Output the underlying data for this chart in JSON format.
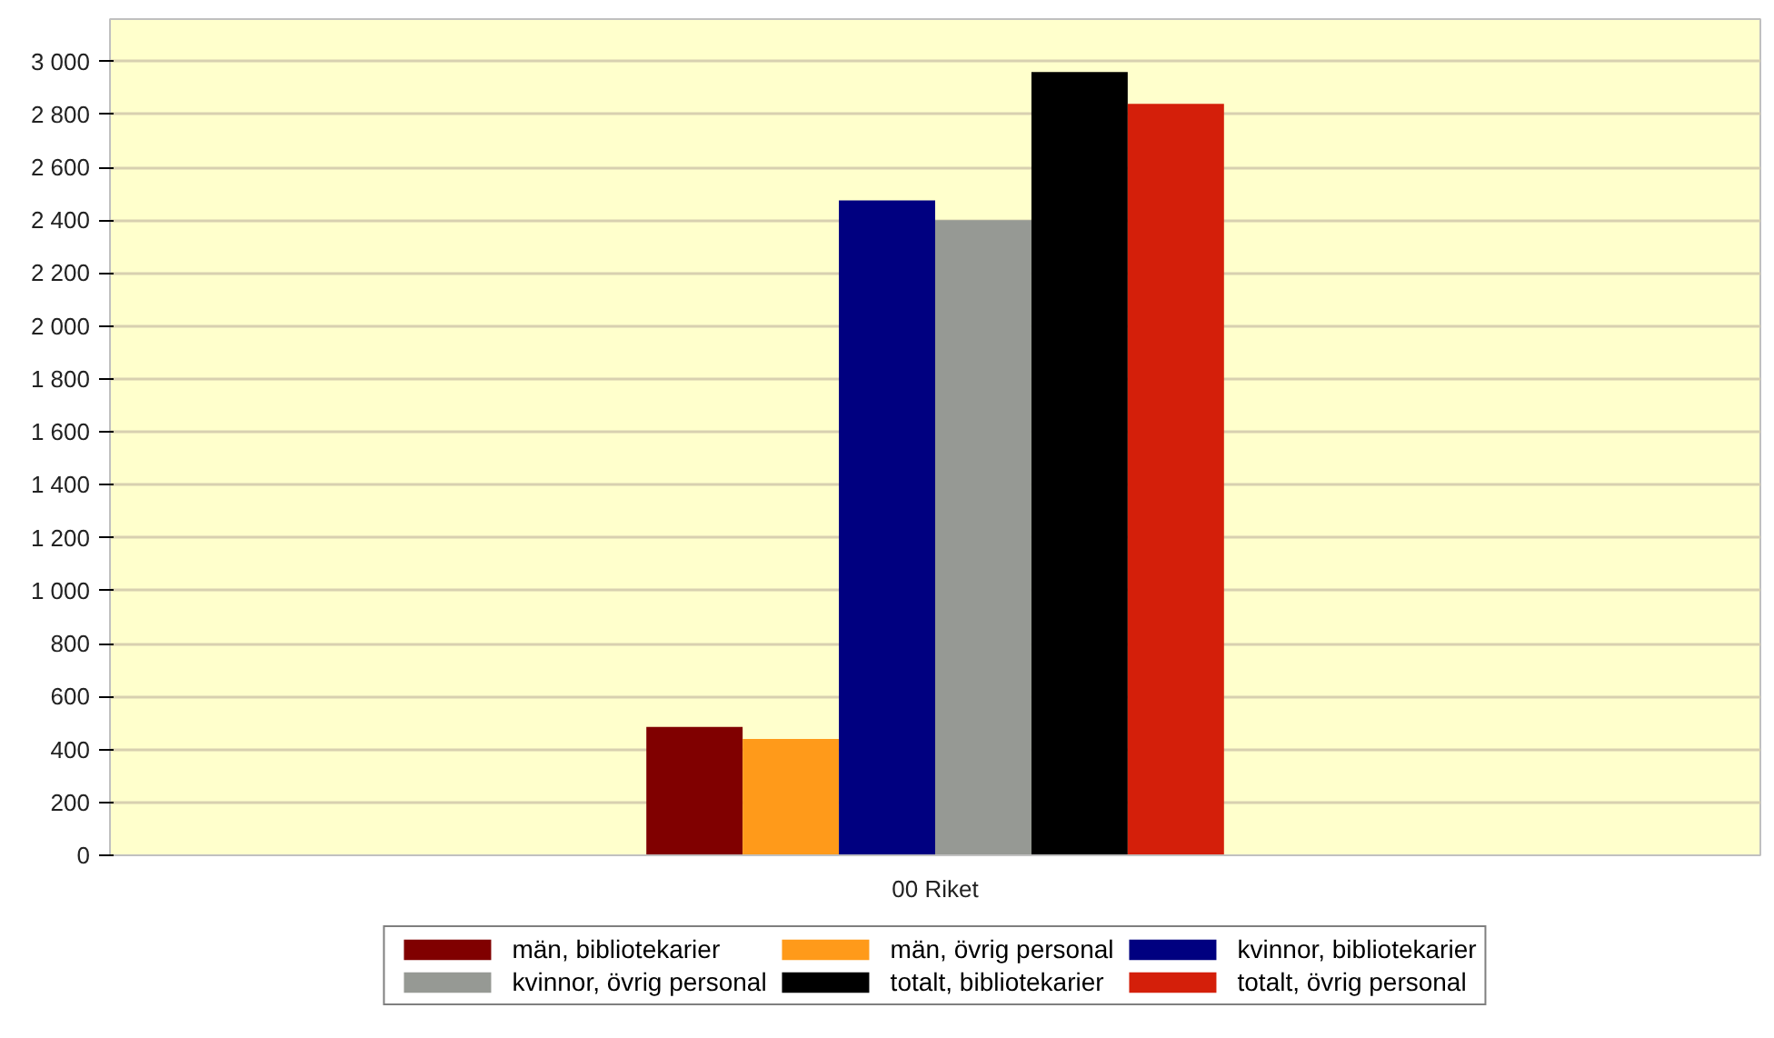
{
  "chart_data": {
    "type": "bar",
    "categories": [
      "00 Riket"
    ],
    "series": [
      {
        "name": "män, bibliotekarier",
        "color": "#800000",
        "values": [
          485
        ]
      },
      {
        "name": "män, övrig personal",
        "color": "#ff9a1a",
        "values": [
          440
        ]
      },
      {
        "name": "kvinnor, bibliotekarier",
        "color": "#000080",
        "values": [
          2475
        ]
      },
      {
        "name": "kvinnor, övrig personal",
        "color": "#969994",
        "values": [
          2400
        ]
      },
      {
        "name": "totalt, bibliotekarier",
        "color": "#000000",
        "values": [
          2960
        ]
      },
      {
        "name": "totalt, övrig personal",
        "color": "#d41f0a",
        "values": [
          2840
        ]
      }
    ],
    "ylim": [
      0,
      3160
    ],
    "yticks": [
      0,
      200,
      400,
      600,
      800,
      {
        "value": 1000,
        "label": "1 000"
      },
      {
        "value": 1200,
        "label": "1 200"
      },
      {
        "value": 1400,
        "label": "1 400"
      },
      {
        "value": 1600,
        "label": "1 600"
      },
      {
        "value": 1800,
        "label": "1 800"
      },
      {
        "value": 2000,
        "label": "2 000"
      },
      {
        "value": 2200,
        "label": "2 200"
      },
      {
        "value": 2400,
        "label": "2 400"
      },
      {
        "value": 2600,
        "label": "2 600"
      },
      {
        "value": 2800,
        "label": "2 800"
      },
      {
        "value": 3000,
        "label": "3 000"
      }
    ],
    "grid": "y",
    "legend": "bottom"
  }
}
